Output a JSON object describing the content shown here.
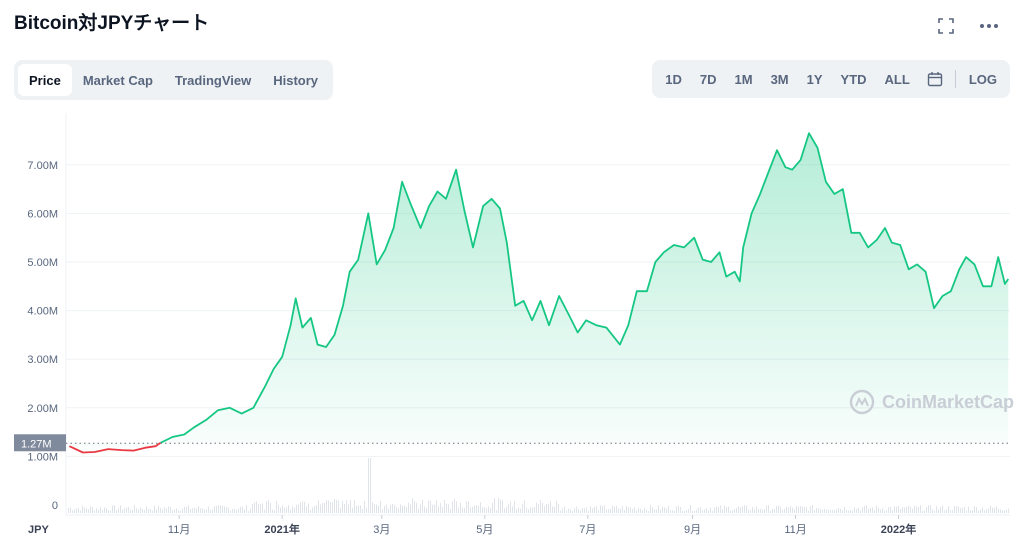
{
  "title": "Bitcoin対JPYチャート",
  "header_icons": [
    "fullscreen-icon",
    "more-icon"
  ],
  "tabs": [
    {
      "label": "Price",
      "active": true
    },
    {
      "label": "Market Cap",
      "active": false
    },
    {
      "label": "TradingView",
      "active": false
    },
    {
      "label": "History",
      "active": false
    }
  ],
  "ranges": [
    "1D",
    "7D",
    "1M",
    "3M",
    "1Y",
    "YTD",
    "ALL"
  ],
  "log_label": "LOG",
  "currency_label": "JPY",
  "current_price_label": "1.27M",
  "watermark": "CoinMarketCap",
  "colors": {
    "up": "#16c784",
    "down": "#ea3943",
    "grid": "#eff2f5",
    "axis_text": "#58667e"
  },
  "chart_data": {
    "type": "area",
    "title": "Bitcoin対JPYチャート",
    "xlabel": "",
    "ylabel": "",
    "ylim": [
      0,
      8000000
    ],
    "y_ticks": [
      {
        "value": 0,
        "label": "0"
      },
      {
        "value": 1000000,
        "label": "1.00M"
      },
      {
        "value": 2000000,
        "label": "2.00M"
      },
      {
        "value": 3000000,
        "label": "3.00M"
      },
      {
        "value": 4000000,
        "label": "4.00M"
      },
      {
        "value": 5000000,
        "label": "5.00M"
      },
      {
        "value": 6000000,
        "label": "6.00M"
      },
      {
        "value": 7000000,
        "label": "7.00M"
      }
    ],
    "x_ticks": [
      {
        "date": "2020-11-01",
        "label": "11月",
        "bold": false
      },
      {
        "date": "2021-01-01",
        "label": "2021年",
        "bold": true
      },
      {
        "date": "2021-03-01",
        "label": "3月",
        "bold": false
      },
      {
        "date": "2021-05-01",
        "label": "5月",
        "bold": false
      },
      {
        "date": "2021-07-01",
        "label": "7月",
        "bold": false
      },
      {
        "date": "2021-09-01",
        "label": "9月",
        "bold": false
      },
      {
        "date": "2021-11-01",
        "label": "11月",
        "bold": false
      },
      {
        "date": "2022-01-01",
        "label": "2022年",
        "bold": true
      }
    ],
    "reference_line": {
      "value": 1270000,
      "label": "1.27M"
    },
    "grid": true,
    "series": [
      {
        "values": [
          [
            "2020-08-28",
            1210000
          ],
          [
            "2020-09-05",
            1080000
          ],
          [
            "2020-09-12",
            1090000
          ],
          [
            "2020-09-20",
            1150000
          ],
          [
            "2020-09-28",
            1130000
          ],
          [
            "2020-10-05",
            1120000
          ],
          [
            "2020-10-12",
            1180000
          ],
          [
            "2020-10-18",
            1210000
          ],
          [
            "2020-10-21",
            1280000
          ],
          [
            "2020-10-28",
            1400000
          ],
          [
            "2020-11-04",
            1450000
          ],
          [
            "2020-11-10",
            1600000
          ],
          [
            "2020-11-17",
            1750000
          ],
          [
            "2020-11-24",
            1950000
          ],
          [
            "2020-12-01",
            2000000
          ],
          [
            "2020-12-08",
            1880000
          ],
          [
            "2020-12-15",
            2000000
          ],
          [
            "2020-12-22",
            2450000
          ],
          [
            "2020-12-27",
            2800000
          ],
          [
            "2021-01-01",
            3050000
          ],
          [
            "2021-01-06",
            3700000
          ],
          [
            "2021-01-09",
            4250000
          ],
          [
            "2021-01-13",
            3650000
          ],
          [
            "2021-01-18",
            3850000
          ],
          [
            "2021-01-22",
            3300000
          ],
          [
            "2021-01-27",
            3250000
          ],
          [
            "2021-02-01",
            3500000
          ],
          [
            "2021-02-06",
            4100000
          ],
          [
            "2021-02-10",
            4800000
          ],
          [
            "2021-02-15",
            5050000
          ],
          [
            "2021-02-21",
            6000000
          ],
          [
            "2021-02-26",
            4950000
          ],
          [
            "2021-03-03",
            5250000
          ],
          [
            "2021-03-08",
            5700000
          ],
          [
            "2021-03-13",
            6650000
          ],
          [
            "2021-03-18",
            6200000
          ],
          [
            "2021-03-24",
            5700000
          ],
          [
            "2021-03-29",
            6150000
          ],
          [
            "2021-04-03",
            6450000
          ],
          [
            "2021-04-08",
            6300000
          ],
          [
            "2021-04-14",
            6900000
          ],
          [
            "2021-04-19",
            6050000
          ],
          [
            "2021-04-24",
            5300000
          ],
          [
            "2021-04-30",
            6150000
          ],
          [
            "2021-05-05",
            6300000
          ],
          [
            "2021-05-10",
            6100000
          ],
          [
            "2021-05-14",
            5400000
          ],
          [
            "2021-05-19",
            4100000
          ],
          [
            "2021-05-24",
            4200000
          ],
          [
            "2021-05-29",
            3800000
          ],
          [
            "2021-06-03",
            4200000
          ],
          [
            "2021-06-08",
            3700000
          ],
          [
            "2021-06-14",
            4300000
          ],
          [
            "2021-06-20",
            3900000
          ],
          [
            "2021-06-25",
            3550000
          ],
          [
            "2021-06-30",
            3800000
          ],
          [
            "2021-07-06",
            3700000
          ],
          [
            "2021-07-12",
            3650000
          ],
          [
            "2021-07-20",
            3300000
          ],
          [
            "2021-07-25",
            3700000
          ],
          [
            "2021-07-30",
            4400000
          ],
          [
            "2021-08-05",
            4400000
          ],
          [
            "2021-08-10",
            5000000
          ],
          [
            "2021-08-15",
            5200000
          ],
          [
            "2021-08-21",
            5350000
          ],
          [
            "2021-08-27",
            5300000
          ],
          [
            "2021-09-02",
            5500000
          ],
          [
            "2021-09-07",
            5050000
          ],
          [
            "2021-09-12",
            5000000
          ],
          [
            "2021-09-17",
            5200000
          ],
          [
            "2021-09-21",
            4700000
          ],
          [
            "2021-09-26",
            4800000
          ],
          [
            "2021-09-29",
            4600000
          ],
          [
            "2021-10-01",
            5300000
          ],
          [
            "2021-10-06",
            6000000
          ],
          [
            "2021-10-11",
            6400000
          ],
          [
            "2021-10-16",
            6850000
          ],
          [
            "2021-10-21",
            7300000
          ],
          [
            "2021-10-26",
            6950000
          ],
          [
            "2021-10-30",
            6900000
          ],
          [
            "2021-11-04",
            7100000
          ],
          [
            "2021-11-09",
            7650000
          ],
          [
            "2021-11-14",
            7350000
          ],
          [
            "2021-11-19",
            6650000
          ],
          [
            "2021-11-24",
            6400000
          ],
          [
            "2021-11-29",
            6500000
          ],
          [
            "2021-12-04",
            5600000
          ],
          [
            "2021-12-09",
            5600000
          ],
          [
            "2021-12-14",
            5300000
          ],
          [
            "2021-12-19",
            5450000
          ],
          [
            "2021-12-24",
            5700000
          ],
          [
            "2021-12-28",
            5400000
          ],
          [
            "2022-01-02",
            5350000
          ],
          [
            "2022-01-07",
            4850000
          ],
          [
            "2022-01-12",
            4950000
          ],
          [
            "2022-01-17",
            4800000
          ],
          [
            "2022-01-22",
            4050000
          ],
          [
            "2022-01-27",
            4300000
          ],
          [
            "2022-02-01",
            4400000
          ],
          [
            "2022-02-06",
            4850000
          ],
          [
            "2022-02-10",
            5100000
          ],
          [
            "2022-02-15",
            4950000
          ],
          [
            "2022-02-20",
            4500000
          ],
          [
            "2022-02-25",
            4500000
          ],
          [
            "2022-03-01",
            5100000
          ],
          [
            "2022-03-05",
            4550000
          ],
          [
            "2022-03-07",
            4650000
          ]
        ]
      }
    ]
  }
}
